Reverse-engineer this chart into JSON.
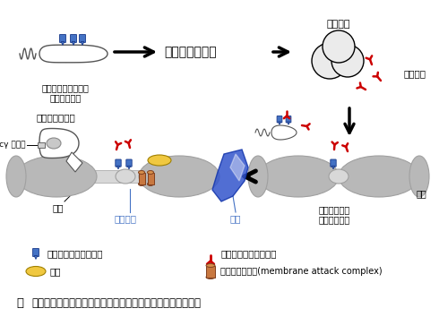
{
  "bg_color": "#ffffff",
  "legend_row1_left_text": "ガングリオシド様糖鎖",
  "legend_row1_right_text": "抗ガングリオシド抗体",
  "legend_row2_left_text": "補体",
  "legend_row2_right_text": "膜傷害性複合体(membrane attack complex)",
  "title_zu": "図",
  "title_main": "ギラン・バレー症候群における抗体介在性神経傷害（推定）",
  "label_campylobacter": "カンピロバクター・\nジェジュニ菌",
  "label_infection": "感染～免疫反応",
  "label_plasma": "形質細胞",
  "label_autoantibody": "自己抗体",
  "label_macrophage": "マクロファージ",
  "label_fc": "Fcγ 受容体",
  "label_axon": "軸索",
  "label_axon_damage": "軸索障害",
  "label_demyelin": "脱髄",
  "label_ranvier": "ランビエ絞輪\n（末梢神経）",
  "label_myelin": "髄鞘",
  "blue": "#4472C4",
  "red": "#CC0000",
  "gray_light": "#D8D8D8",
  "gray_mid": "#B8B8B8",
  "gray_dark": "#A0A0A0",
  "yellow": "#F0C840",
  "orange": "#C87840",
  "orange_light": "#D8904A",
  "blue_dark": "#1A3A8A"
}
